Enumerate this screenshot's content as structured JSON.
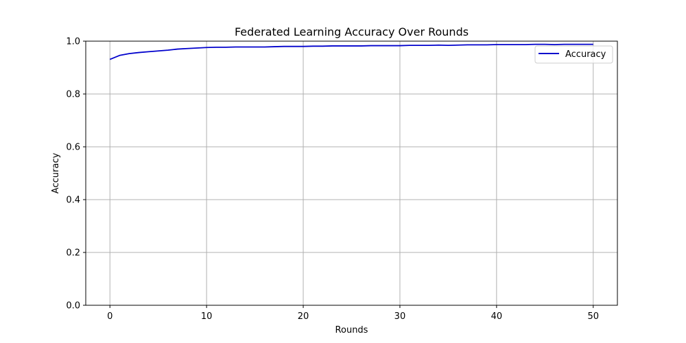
{
  "chart_data": {
    "type": "line",
    "title": "Federated Learning Accuracy Over Rounds",
    "xlabel": "Rounds",
    "ylabel": "Accuracy",
    "xlim": [
      -2.5,
      52.5
    ],
    "ylim": [
      0.0,
      1.0
    ],
    "xticks": [
      0,
      10,
      20,
      30,
      40,
      50
    ],
    "yticks": [
      0.0,
      0.2,
      0.4,
      0.6,
      0.8,
      1.0
    ],
    "xtick_labels": [
      "0",
      "10",
      "20",
      "30",
      "40",
      "50"
    ],
    "ytick_labels": [
      "0.0",
      "0.2",
      "0.4",
      "0.6",
      "0.8",
      "1.0"
    ],
    "grid": true,
    "legend_position": "top-right",
    "series": [
      {
        "name": "Accuracy",
        "color": "#0000cc",
        "x": [
          0,
          1,
          2,
          3,
          4,
          5,
          6,
          7,
          8,
          9,
          10,
          11,
          12,
          13,
          14,
          15,
          16,
          17,
          18,
          19,
          20,
          21,
          22,
          23,
          24,
          25,
          26,
          27,
          28,
          29,
          30,
          31,
          32,
          33,
          34,
          35,
          36,
          37,
          38,
          39,
          40,
          41,
          42,
          43,
          44,
          45,
          46,
          47,
          48,
          49,
          50
        ],
        "y": [
          0.931,
          0.946,
          0.953,
          0.957,
          0.96,
          0.963,
          0.966,
          0.97,
          0.972,
          0.974,
          0.976,
          0.977,
          0.977,
          0.978,
          0.978,
          0.978,
          0.978,
          0.979,
          0.98,
          0.98,
          0.98,
          0.981,
          0.981,
          0.982,
          0.982,
          0.982,
          0.982,
          0.983,
          0.983,
          0.983,
          0.983,
          0.984,
          0.984,
          0.984,
          0.985,
          0.984,
          0.985,
          0.986,
          0.986,
          0.986,
          0.987,
          0.987,
          0.987,
          0.987,
          0.988,
          0.988,
          0.987,
          0.988,
          0.988,
          0.988,
          0.988
        ]
      }
    ]
  }
}
